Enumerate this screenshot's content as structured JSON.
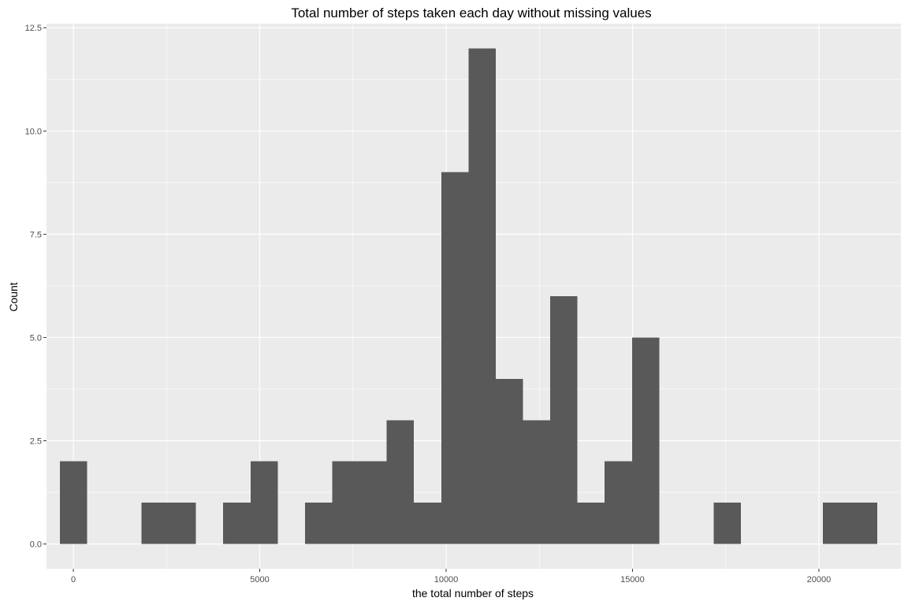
{
  "chart_data": {
    "type": "bar",
    "title": "Total number of steps taken each day without missing values",
    "xlabel": "the total number of steps",
    "ylabel": "Count",
    "xlim": [
      -720,
      22200
    ],
    "ylim": [
      -0.6,
      12.6
    ],
    "x_ticks": [
      0,
      5000,
      10000,
      15000,
      20000
    ],
    "x_tick_labels": [
      "0",
      "5000",
      "10000",
      "15000",
      "20000"
    ],
    "y_ticks": [
      0,
      2.5,
      5,
      7.5,
      10,
      12.5
    ],
    "y_tick_labels": [
      "0.0",
      "2.5",
      "5.0",
      "7.5",
      "10.0",
      "12.5"
    ],
    "grid": true,
    "bin_width": 731,
    "bin_centers": [
      0,
      731,
      1462,
      2193,
      2924,
      3655,
      4386,
      5117,
      5848,
      6579,
      7310,
      8041,
      8772,
      9503,
      10234,
      10965,
      11696,
      12427,
      13158,
      13889,
      14620,
      15351,
      16082,
      16813,
      17544,
      18275,
      19006,
      19737,
      20468,
      21199
    ],
    "values": [
      2,
      0,
      0,
      1,
      1,
      0,
      1,
      2,
      0,
      1,
      2,
      2,
      3,
      1,
      9,
      12,
      4,
      3,
      6,
      1,
      2,
      5,
      0,
      0,
      1,
      0,
      0,
      0,
      1,
      1
    ],
    "bar_color": "#595959",
    "panel_color": "#ebebeb",
    "grid_color": "#ffffff"
  }
}
